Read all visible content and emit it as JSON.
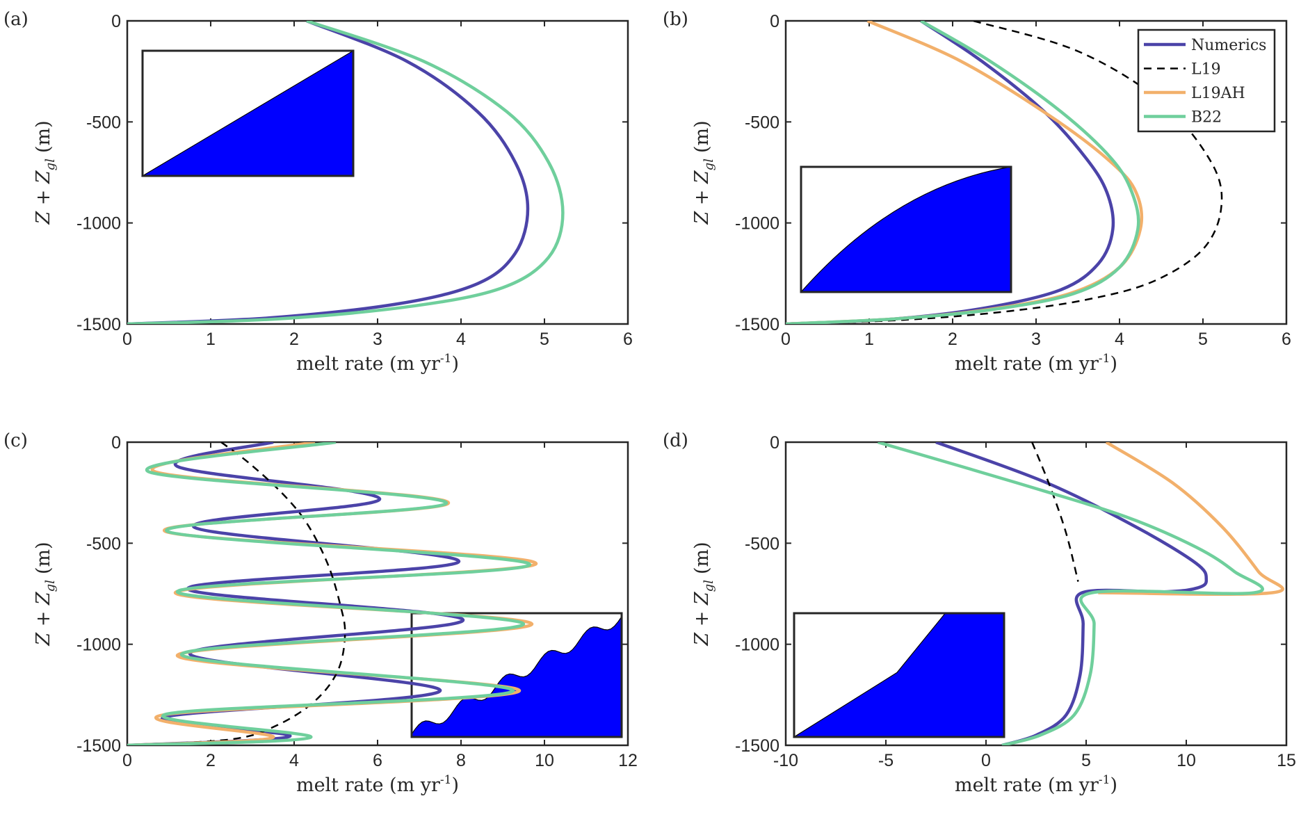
{
  "chart_data": [
    {
      "type": "line",
      "panel_label": "(a)",
      "xlabel": "melt rate (m yr",
      "xlabel_sup": "-1",
      "xlabel_close": ")",
      "ylabel": "Z + Z",
      "ylabel_sub": "gl",
      "ylabel_unit": "(m)",
      "xlim": [
        0,
        6
      ],
      "ylim": [
        -1500,
        0
      ],
      "xticks": [
        0,
        1,
        2,
        3,
        4,
        5,
        6
      ],
      "yticks": [
        0,
        -500,
        -1000,
        -1500
      ],
      "legend": null,
      "inset": "linear",
      "series": [
        {
          "name": "Numerics",
          "color": "#4B43A8",
          "dash": "solid",
          "x": [
            2.15,
            3.35,
            4.2,
            4.65,
            4.8,
            4.65,
            4.2,
            3.25,
            1.7,
            0.0
          ],
          "y": [
            0,
            -200,
            -450,
            -700,
            -930,
            -1150,
            -1300,
            -1400,
            -1470,
            -1500
          ]
        },
        {
          "name": "B22",
          "color": "#6FCF9C",
          "dash": "solid",
          "x": [
            2.15,
            3.55,
            4.55,
            5.05,
            5.22,
            5.05,
            4.5,
            3.45,
            1.8,
            0.0
          ],
          "y": [
            0,
            -200,
            -450,
            -700,
            -950,
            -1170,
            -1320,
            -1410,
            -1475,
            -1500
          ]
        }
      ]
    },
    {
      "type": "line",
      "panel_label": "(b)",
      "xlabel": "melt rate (m yr",
      "xlabel_sup": "-1",
      "xlabel_close": ")",
      "ylabel": "Z + Z",
      "ylabel_sub": "gl",
      "ylabel_unit": "(m)",
      "xlim": [
        0,
        6
      ],
      "ylim": [
        -1500,
        0
      ],
      "xticks": [
        0,
        1,
        2,
        3,
        4,
        5,
        6
      ],
      "yticks": [
        0,
        -500,
        -1000,
        -1500
      ],
      "legend": [
        "Numerics",
        "L19",
        "L19AH",
        "B22"
      ],
      "inset": "convex",
      "series": [
        {
          "name": "Numerics",
          "color": "#4B43A8",
          "dash": "solid",
          "x": [
            1.62,
            2.35,
            3.1,
            3.6,
            3.85,
            3.92,
            3.75,
            3.3,
            2.4,
            1.3,
            0.0
          ],
          "y": [
            0,
            -200,
            -450,
            -680,
            -850,
            -1030,
            -1200,
            -1330,
            -1420,
            -1475,
            -1500
          ]
        },
        {
          "name": "L19",
          "color": "#000000",
          "dash": "dashed",
          "x": [
            2.25,
            3.5,
            4.5,
            5.1,
            5.22,
            5.0,
            4.4,
            3.6,
            2.6,
            1.4,
            0.0
          ],
          "y": [
            0,
            -150,
            -400,
            -700,
            -920,
            -1130,
            -1290,
            -1380,
            -1440,
            -1480,
            -1500
          ]
        },
        {
          "name": "L19AH",
          "color": "#F2B06B",
          "dash": "solid",
          "x": [
            0.98,
            2.1,
            3.2,
            3.9,
            4.2,
            4.25,
            4.0,
            3.4,
            2.4,
            1.3,
            0.0
          ],
          "y": [
            0,
            -200,
            -480,
            -700,
            -850,
            -1030,
            -1220,
            -1350,
            -1430,
            -1475,
            -1500
          ]
        },
        {
          "name": "B22",
          "color": "#6FCF9C",
          "dash": "solid",
          "x": [
            1.62,
            2.45,
            3.3,
            3.9,
            4.15,
            4.22,
            4.0,
            3.45,
            2.45,
            1.3,
            0.0
          ],
          "y": [
            0,
            -200,
            -450,
            -680,
            -850,
            -1030,
            -1220,
            -1350,
            -1430,
            -1475,
            -1500
          ]
        }
      ]
    },
    {
      "type": "line",
      "panel_label": "(c)",
      "xlabel": "melt rate (m yr",
      "xlabel_sup": "-1",
      "xlabel_close": ")",
      "ylabel": "Z + Z",
      "ylabel_sub": "gl",
      "ylabel_unit": "(m)",
      "xlim": [
        0,
        12
      ],
      "ylim": [
        -1500,
        0
      ],
      "xticks": [
        0,
        2,
        4,
        6,
        8,
        10,
        12
      ],
      "yticks": [
        0,
        -500,
        -1000,
        -1500
      ],
      "legend": null,
      "inset": "wavy",
      "series": [
        {
          "name": "Numerics",
          "color": "#4B43A8",
          "dash": "solid",
          "x": [
            3.5,
            1.2,
            6.05,
            1.6,
            7.95,
            1.45,
            8.05,
            1.5,
            7.5,
            0.9,
            3.9,
            0.0
          ],
          "y": [
            0,
            -120,
            -280,
            -420,
            -590,
            -725,
            -880,
            -1045,
            -1230,
            -1360,
            -1455,
            -1500
          ]
        },
        {
          "name": "L19",
          "color": "#000000",
          "dash": "dashed",
          "x": [
            2.25,
            2.9,
            3.7,
            4.3,
            4.8,
            5.1,
            5.22,
            5.05,
            4.5,
            3.6,
            2.5,
            0.0
          ],
          "y": [
            0,
            -100,
            -250,
            -400,
            -600,
            -800,
            -950,
            -1130,
            -1280,
            -1400,
            -1470,
            -1500
          ]
        },
        {
          "name": "L19AH",
          "color": "#F2B06B",
          "dash": "solid",
          "x": [
            4.5,
            0.65,
            7.7,
            0.9,
            9.8,
            1.15,
            9.7,
            1.2,
            9.4,
            0.85,
            3.5,
            0.0
          ],
          "y": [
            0,
            -145,
            -300,
            -440,
            -600,
            -745,
            -900,
            -1055,
            -1230,
            -1350,
            -1460,
            -1500
          ]
        },
        {
          "name": "B22",
          "color": "#6FCF9C",
          "dash": "solid",
          "x": [
            5.0,
            0.5,
            7.65,
            0.95,
            9.65,
            1.2,
            9.5,
            1.3,
            9.25,
            0.95,
            4.4,
            0.0
          ],
          "y": [
            0,
            -145,
            -300,
            -440,
            -605,
            -740,
            -900,
            -1050,
            -1230,
            -1345,
            -1460,
            -1500
          ]
        }
      ]
    },
    {
      "type": "line",
      "panel_label": "(d)",
      "xlabel": "melt rate (m yr",
      "xlabel_sup": "-1",
      "xlabel_close": ")",
      "ylabel": "Z + Z",
      "ylabel_sub": "gl",
      "ylabel_unit": "(m)",
      "xlim": [
        -10,
        15
      ],
      "ylim": [
        -1500,
        0
      ],
      "xticks": [
        -10,
        -5,
        0,
        5,
        10,
        15
      ],
      "yticks": [
        0,
        -500,
        -1000,
        -1500
      ],
      "legend": null,
      "inset": "kinked",
      "series": [
        {
          "name": "Numerics",
          "color": "#4B43A8",
          "dash": "solid",
          "x": [
            -2.5,
            3.0,
            7.5,
            10.5,
            11.0,
            10.6,
            9.0,
            4.8,
            4.85,
            4.7,
            4.0,
            2.5,
            0.8
          ],
          "y": [
            0,
            -200,
            -420,
            -600,
            -680,
            -720,
            -740,
            -745,
            -900,
            -1150,
            -1350,
            -1450,
            -1500
          ]
        },
        {
          "name": "L19",
          "color": "#000000",
          "dash": "dashed",
          "x": [
            2.3,
            3.2,
            4.0,
            4.6
          ],
          "y": [
            0,
            -220,
            -450,
            -690
          ]
        },
        {
          "name": "L19AH",
          "color": "#F2B06B",
          "dash": "solid",
          "x": [
            6.0,
            9.3,
            11.8,
            13.6,
            14.3,
            5.6
          ],
          "y": [
            0,
            -200,
            -420,
            -640,
            -745,
            -745
          ]
        },
        {
          "name": "B22",
          "color": "#6FCF9C",
          "dash": "solid",
          "x": [
            -5.4,
            1.5,
            7.0,
            10.5,
            12.4,
            13.4,
            5.3,
            5.4,
            5.2,
            4.4,
            2.7,
            0.8
          ],
          "y": [
            0,
            -200,
            -370,
            -520,
            -640,
            -745,
            -745,
            -900,
            -1150,
            -1350,
            -1450,
            -1500
          ]
        }
      ]
    }
  ]
}
